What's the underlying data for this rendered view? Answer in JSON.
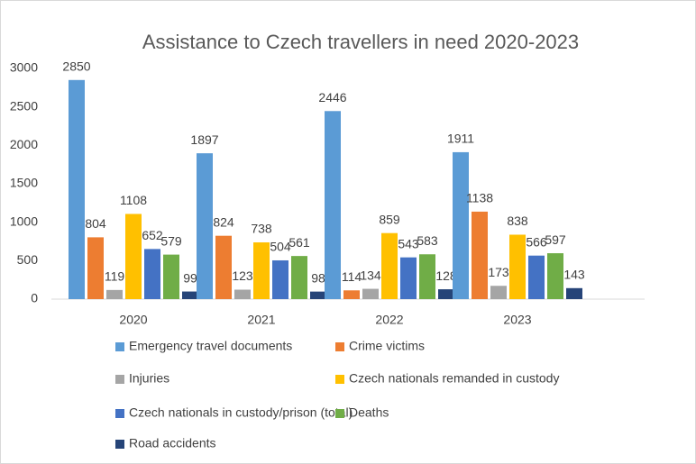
{
  "chart_data": {
    "type": "bar",
    "title": "Assistance to Czech travellers in need 2020-2023",
    "categories": [
      "2020",
      "2021",
      "2022",
      "2023"
    ],
    "series": [
      {
        "name": "Emergency travel documents",
        "color": "#5b9bd5",
        "values": [
          2850,
          1897,
          2446,
          1911
        ]
      },
      {
        "name": "Crime victims",
        "color": "#ed7d31",
        "values": [
          804,
          824,
          114,
          1138
        ]
      },
      {
        "name": "Injuries",
        "color": "#a5a5a5",
        "values": [
          119,
          123,
          134,
          173
        ]
      },
      {
        "name": "Czech nationals remanded in custody",
        "color": "#ffc000",
        "values": [
          1108,
          738,
          859,
          838
        ]
      },
      {
        "name": "Czech nationals in custody/prison (total)",
        "color": "#4472c4",
        "values": [
          652,
          504,
          543,
          566
        ]
      },
      {
        "name": "Deaths",
        "color": "#70ad47",
        "values": [
          579,
          561,
          583,
          597
        ]
      },
      {
        "name": "Road accidents",
        "color": "#264478",
        "values": [
          99,
          98,
          128,
          143
        ]
      }
    ],
    "ylim": [
      0,
      3000
    ],
    "yticks": [
      0,
      500,
      1000,
      1500,
      2000,
      2500,
      3000
    ],
    "grid": false,
    "legend": "bottom"
  }
}
